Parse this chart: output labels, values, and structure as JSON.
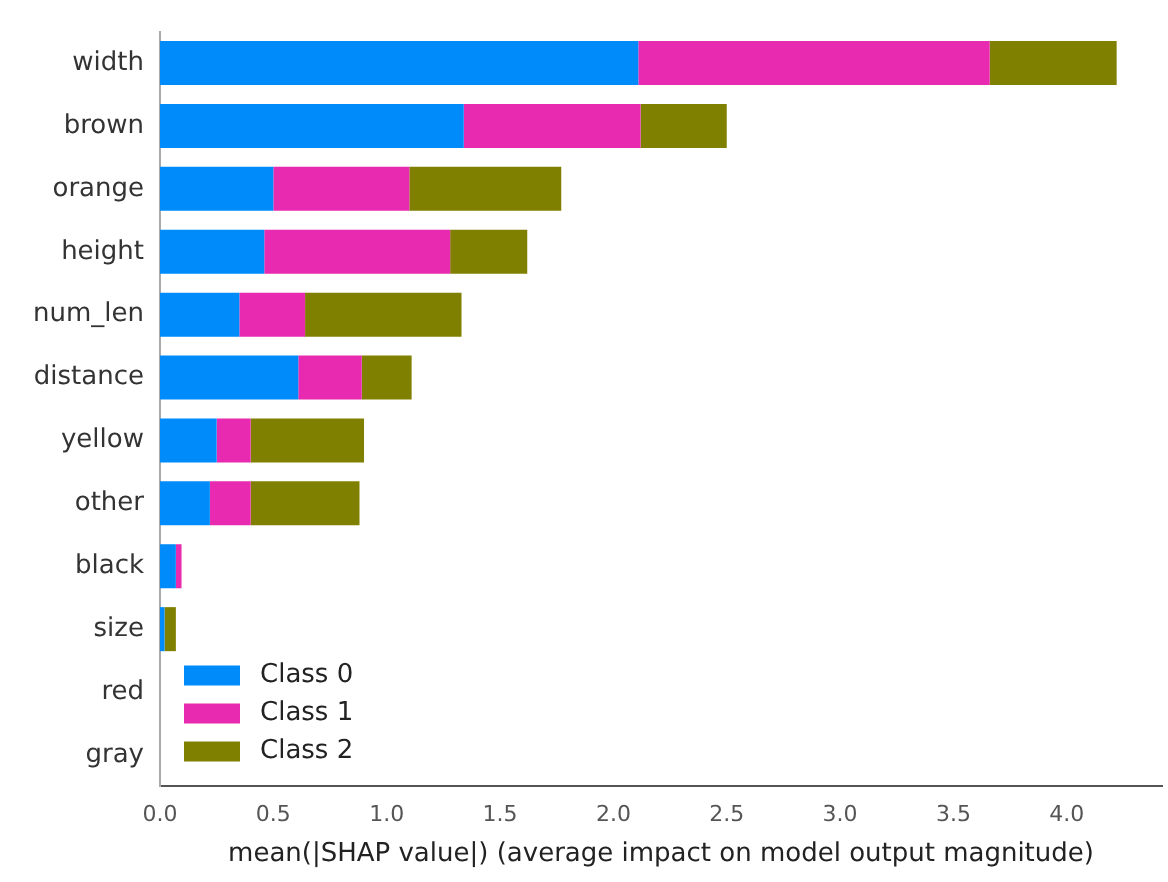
{
  "chart_data": {
    "type": "bar",
    "orientation": "horizontal",
    "stacked": true,
    "xlabel": "mean(|SHAP value|) (average impact on model output magnitude)",
    "categories": [
      "width",
      "brown",
      "orange",
      "height",
      "num_len",
      "distance",
      "yellow",
      "other",
      "black",
      "size",
      "red",
      "gray"
    ],
    "series": [
      {
        "name": "Class 0",
        "color": "#008bfb",
        "values": [
          2.11,
          1.34,
          0.5,
          0.46,
          0.35,
          0.61,
          0.25,
          0.22,
          0.07,
          0.02,
          0,
          0
        ]
      },
      {
        "name": "Class 1",
        "color": "#e82ab0",
        "values": [
          1.55,
          0.78,
          0.6,
          0.82,
          0.29,
          0.28,
          0.15,
          0.18,
          0.025,
          0,
          0,
          0
        ]
      },
      {
        "name": "Class 2",
        "color": "#808000",
        "values": [
          0.56,
          0.38,
          0.67,
          0.34,
          0.69,
          0.22,
          0.5,
          0.48,
          0,
          0.05,
          0,
          0
        ]
      }
    ],
    "xlim": [
      0,
      4.42
    ],
    "xticks": [
      {
        "value": 0,
        "label": "0.0"
      },
      {
        "value": 0.5,
        "label": "0.5"
      },
      {
        "value": 1,
        "label": "1.0"
      },
      {
        "value": 1.5,
        "label": "1.5"
      },
      {
        "value": 2,
        "label": "2.0"
      },
      {
        "value": 2.5,
        "label": "2.5"
      },
      {
        "value": 3,
        "label": "3.0"
      },
      {
        "value": 3.5,
        "label": "3.5"
      },
      {
        "value": 4,
        "label": "4.0"
      }
    ],
    "legend": "bottom left",
    "grid": false
  }
}
